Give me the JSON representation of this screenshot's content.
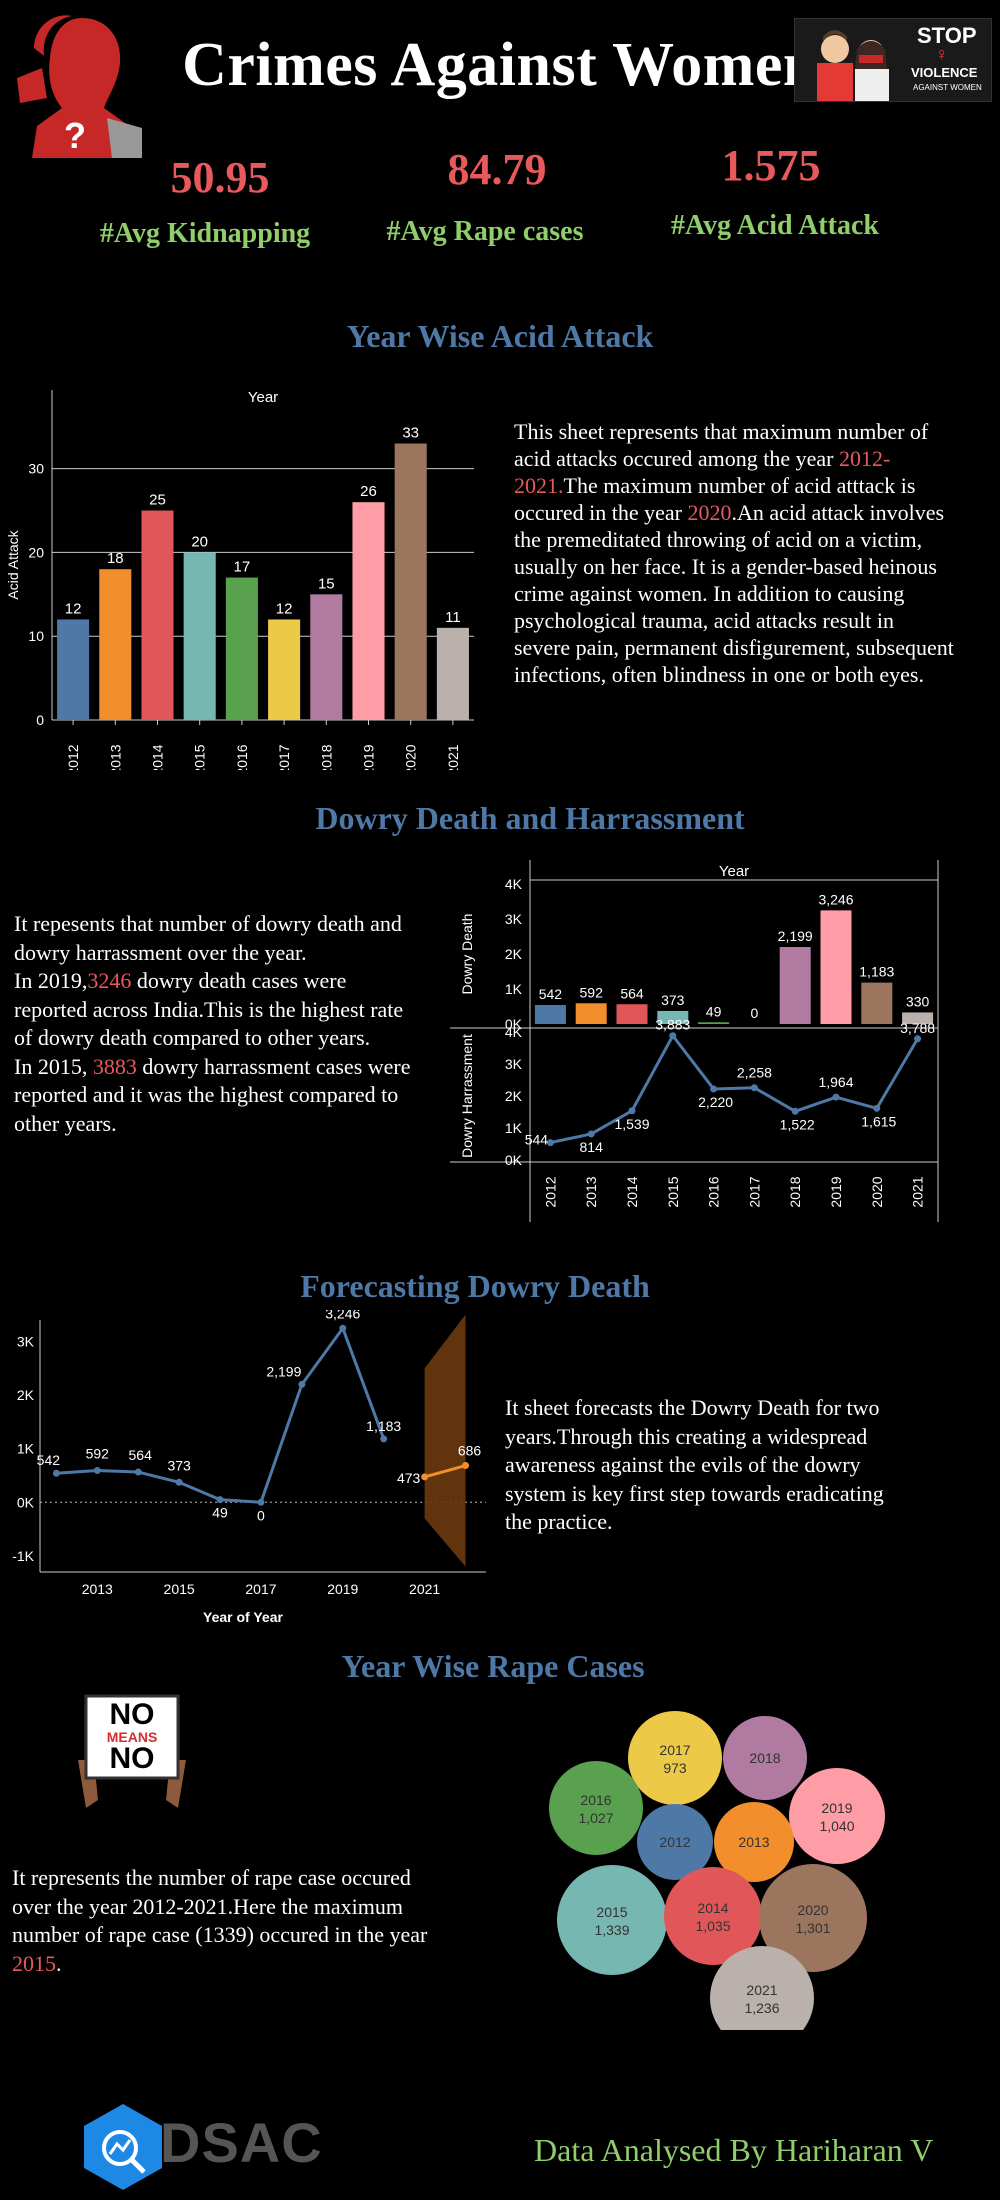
{
  "header": {
    "title": "Crimes Against Women"
  },
  "stop_badge": {
    "line1": "STOP",
    "line2": "VIOLENCE",
    "line3": "AGAINST WOMEN"
  },
  "kpis": [
    {
      "value": "50.95",
      "label": "#Avg Kidnapping"
    },
    {
      "value": "84.79",
      "label": "#Avg Rape cases"
    },
    {
      "value": "1.575",
      "label": "#Avg Acid Attack"
    }
  ],
  "acid": {
    "section_title": "Year Wise Acid Attack",
    "desc_parts": [
      "This sheet represents  that maximum  number of acid attacks occured among the year ",
      "2012-2021.",
      "The maximum number of acid atttack is occured in the year ",
      "2020",
      ".An acid attack involves the premeditated throwing of acid on a victim, usually on her face. It is a gender-based heinous crime against women. In addition to causing psychological trauma, acid attacks result in severe pain, permanent disfigurement, subsequent infections, often blindness in one or both eyes."
    ]
  },
  "dowry": {
    "section_title": "Dowry Death and Harrassment",
    "desc_parts": [
      "It repesents that number of dowry death and dowry harrassment over the year.",
      "In 2019,",
      "3246",
      " dowry death cases were reported across India.This is the highest rate of dowry death compared to other years.",
      "In 2015, ",
      "3883",
      " dowry harrassment cases were reported and it was the highest compared to other years."
    ]
  },
  "forecast": {
    "section_title": "Forecasting Dowry Death",
    "desc": "It sheet forecasts the Dowry Death for two years.Through this  creating a widespread awareness against the evils of the dowry system is key first step towards eradicating the practice."
  },
  "rape": {
    "section_title": "Year Wise Rape Cases",
    "sign": {
      "line1": "NO",
      "line2": "MEANS",
      "line3": "NO"
    },
    "desc_parts": [
      "It represents the number of rape case occured over the year 2012-2021.Here the maximum number of rape case (1339) occured in the year ",
      "2015",
      "."
    ]
  },
  "footer": {
    "logo_text": "DSAC",
    "credit": "Data Analysed By Hariharan V"
  },
  "colors": {
    "tableau": [
      "#4e79a7",
      "#f28e2b",
      "#e15759",
      "#76b7b2",
      "#59a14f",
      "#edc948",
      "#b07aa1",
      "#ff9da7",
      "#9c755f",
      "#bab0ac"
    ],
    "accent_red": "#e8595c",
    "accent_green": "#8fce6a",
    "section_blue": "#4e79a7",
    "forecast_orange": "#f28e2b"
  },
  "chart_data": [
    {
      "id": "acid",
      "type": "bar",
      "title": "Year",
      "ylabel": "Acid Attack",
      "categories": [
        "2012",
        "2013",
        "2014",
        "2015",
        "2016",
        "2017",
        "2018",
        "2019",
        "2020",
        "2021"
      ],
      "values": [
        12,
        18,
        25,
        20,
        17,
        12,
        15,
        26,
        33,
        11
      ],
      "ylim": [
        0,
        37
      ],
      "yticks": [
        0,
        10,
        20,
        30
      ],
      "grid": true
    },
    {
      "id": "dowry_death",
      "type": "bar",
      "title": "Year",
      "ylabel": "Dowry Death",
      "categories": [
        "2012",
        "2013",
        "2014",
        "2015",
        "2016",
        "2017",
        "2018",
        "2019",
        "2020",
        "2021"
      ],
      "values": [
        542,
        592,
        564,
        373,
        49,
        0,
        2199,
        3246,
        1183,
        330
      ],
      "ylim": [
        0,
        4000
      ],
      "yticks": [
        0,
        1000,
        2000,
        3000,
        4000
      ],
      "ytick_labels": [
        "0K",
        "1K",
        "2K",
        "3K",
        "4K"
      ]
    },
    {
      "id": "dowry_harassment",
      "type": "line",
      "ylabel": "Dowry Harrassment",
      "categories": [
        "2012",
        "2013",
        "2014",
        "2015",
        "2016",
        "2017",
        "2018",
        "2019",
        "2020",
        "2021"
      ],
      "values": [
        544,
        814,
        1539,
        3883,
        2220,
        2258,
        1522,
        1964,
        1615,
        3788
      ],
      "ylim": [
        0,
        4000
      ],
      "yticks": [
        0,
        1000,
        2000,
        3000,
        4000
      ],
      "ytick_labels": [
        "0K",
        "1K",
        "2K",
        "3K",
        "4K"
      ]
    },
    {
      "id": "forecast",
      "type": "line",
      "xlabel": "Year of Year",
      "x": [
        2012,
        2013,
        2014,
        2015,
        2016,
        2017,
        2018,
        2019,
        2020
      ],
      "values": [
        542,
        592,
        564,
        373,
        49,
        0,
        2199,
        3246,
        1183
      ],
      "value_labels": [
        "542",
        "592",
        "564",
        "373",
        "49",
        "0",
        "2,199",
        "3,246",
        "1,183"
      ],
      "forecast_x": [
        2021,
        2022
      ],
      "forecast_values": [
        473,
        686
      ],
      "forecast_labels": [
        "473",
        "686"
      ],
      "forecast_band": {
        "x": [
          2021,
          2022
        ],
        "upper": [
          2500,
          3500
        ],
        "lower": [
          -300,
          -1200
        ]
      },
      "xlim": [
        2011.6,
        2022.5
      ],
      "xticks": [
        2013,
        2015,
        2017,
        2019,
        2021
      ],
      "ylim": [
        -1300,
        3400
      ],
      "yticks": [
        -1000,
        0,
        1000,
        2000,
        3000
      ],
      "ytick_labels": [
        "-1K",
        "0K",
        "1K",
        "2K",
        "3K"
      ],
      "zero_line": "dotted"
    },
    {
      "id": "rape_bubbles",
      "type": "bubble",
      "items": [
        {
          "year": "2017",
          "value": "973"
        },
        {
          "year": "2018",
          "value": ""
        },
        {
          "year": "2016",
          "value": "1,027"
        },
        {
          "year": "2019",
          "value": "1,040"
        },
        {
          "year": "2012",
          "value": ""
        },
        {
          "year": "2013",
          "value": ""
        },
        {
          "year": "2015",
          "value": "1,339"
        },
        {
          "year": "2014",
          "value": "1,035"
        },
        {
          "year": "2020",
          "value": "1,301"
        },
        {
          "year": "2021",
          "value": "1,236"
        }
      ]
    }
  ]
}
